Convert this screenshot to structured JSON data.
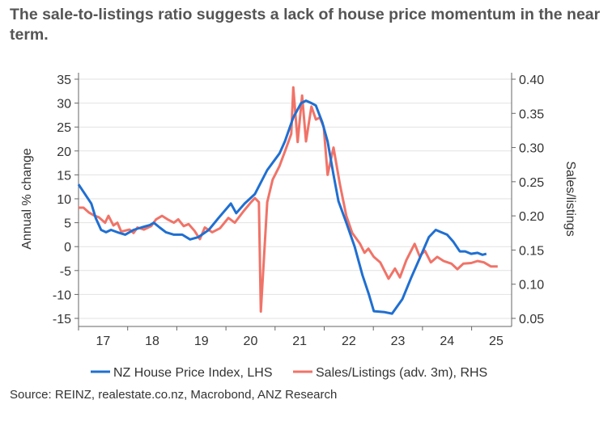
{
  "chart_data": {
    "type": "line",
    "title": "The sale-to-listings ratio suggests a lack of house price momentum in the near term.",
    "ylabel_left": "Annual % change",
    "ylabel_right": "Sales/listings",
    "ylim_left": [
      -15,
      35
    ],
    "ylim_right": [
      0.05,
      0.4
    ],
    "xlim": [
      2017.0,
      2025.85
    ],
    "yticks_left": [
      "35",
      "30",
      "25",
      "20",
      "15",
      "10",
      "5",
      "0",
      "-5",
      "-10",
      "-15"
    ],
    "yticks_right": [
      "0.40",
      "0.35",
      "0.30",
      "0.25",
      "0.20",
      "0.15",
      "0.10",
      "0.05"
    ],
    "xtick_labels": [
      "17",
      "18",
      "19",
      "20",
      "21",
      "22",
      "23",
      "24",
      "25"
    ],
    "grid": true,
    "legend_position": "bottom",
    "series": [
      {
        "name": "NZ House Price Index, LHS",
        "axis": "left",
        "color": "#1f6fd1",
        "x": [
          2017.0,
          2017.13,
          2017.26,
          2017.35,
          2017.46,
          2017.56,
          2017.66,
          2017.79,
          2017.95,
          2018.12,
          2018.28,
          2018.45,
          2018.53,
          2018.65,
          2018.78,
          2018.94,
          2019.11,
          2019.27,
          2019.44,
          2019.65,
          2019.85,
          2020.1,
          2020.21,
          2020.38,
          2020.59,
          2020.84,
          2021.09,
          2021.2,
          2021.37,
          2021.53,
          2021.63,
          2021.74,
          2021.83,
          2021.96,
          2022.07,
          2022.19,
          2022.29,
          2022.45,
          2022.62,
          2022.78,
          2022.91,
          2023.01,
          2023.23,
          2023.38,
          2023.59,
          2023.77,
          2023.94,
          2024.13,
          2024.27,
          2024.38,
          2024.5,
          2024.63,
          2024.76,
          2024.87,
          2024.99,
          2025.12,
          2025.22,
          2025.3
        ],
        "y": [
          13.0,
          11.0,
          9.0,
          6.0,
          3.5,
          3.0,
          3.5,
          3.0,
          2.5,
          3.5,
          4.0,
          4.5,
          5.0,
          4.0,
          3.0,
          2.5,
          2.5,
          1.5,
          2.0,
          3.5,
          6.0,
          9.0,
          7.0,
          9.0,
          11.0,
          16.0,
          19.5,
          22.0,
          27.0,
          30.0,
          30.5,
          30.0,
          29.5,
          26.0,
          22.0,
          15.0,
          9.5,
          5.0,
          0.0,
          -6.0,
          -10.0,
          -13.5,
          -13.7,
          -14.0,
          -11.0,
          -6.5,
          -2.5,
          2.0,
          3.5,
          3.0,
          2.5,
          1.0,
          -1.0,
          -1.0,
          -1.5,
          -1.3,
          -1.7,
          -1.5
        ]
      },
      {
        "name": "Sales/Listings (adv. 3m), RHS",
        "axis": "right",
        "color": "#f07368",
        "x": [
          2017.0,
          2017.1,
          2017.21,
          2017.33,
          2017.41,
          2017.54,
          2017.61,
          2017.71,
          2017.79,
          2017.87,
          2018.04,
          2018.12,
          2018.2,
          2018.33,
          2018.48,
          2018.58,
          2018.7,
          2018.81,
          2018.94,
          2019.03,
          2019.14,
          2019.24,
          2019.36,
          2019.47,
          2019.57,
          2019.72,
          2019.88,
          2020.05,
          2020.18,
          2020.35,
          2020.51,
          2020.59,
          2020.67,
          2020.71,
          2020.84,
          2020.95,
          2021.09,
          2021.2,
          2021.33,
          2021.37,
          2021.46,
          2021.55,
          2021.63,
          2021.74,
          2021.83,
          2021.91,
          2021.99,
          2022.07,
          2022.19,
          2022.32,
          2022.45,
          2022.57,
          2022.73,
          2022.82,
          2022.9,
          2023.01,
          2023.14,
          2023.31,
          2023.44,
          2023.54,
          2023.67,
          2023.84,
          2023.94,
          2024.05,
          2024.17,
          2024.3,
          2024.43,
          2024.59,
          2024.71,
          2024.83,
          2024.99,
          2025.12,
          2025.25,
          2025.39,
          2025.53
        ],
        "y": [
          0.212,
          0.212,
          0.205,
          0.2,
          0.198,
          0.19,
          0.2,
          0.186,
          0.19,
          0.177,
          0.18,
          0.175,
          0.183,
          0.18,
          0.185,
          0.195,
          0.2,
          0.195,
          0.19,
          0.195,
          0.185,
          0.188,
          0.178,
          0.166,
          0.183,
          0.176,
          0.182,
          0.197,
          0.19,
          0.206,
          0.22,
          0.226,
          0.22,
          0.06,
          0.22,
          0.253,
          0.273,
          0.294,
          0.32,
          0.388,
          0.308,
          0.376,
          0.309,
          0.36,
          0.341,
          0.344,
          0.33,
          0.26,
          0.3,
          0.246,
          0.2,
          0.175,
          0.159,
          0.146,
          0.152,
          0.14,
          0.132,
          0.108,
          0.123,
          0.11,
          0.135,
          0.159,
          0.141,
          0.149,
          0.132,
          0.14,
          0.134,
          0.13,
          0.122,
          0.13,
          0.131,
          0.134,
          0.132,
          0.126,
          0.126
        ]
      }
    ],
    "source": "Source: REINZ, realestate.co.nz, Macrobond, ANZ Research"
  }
}
